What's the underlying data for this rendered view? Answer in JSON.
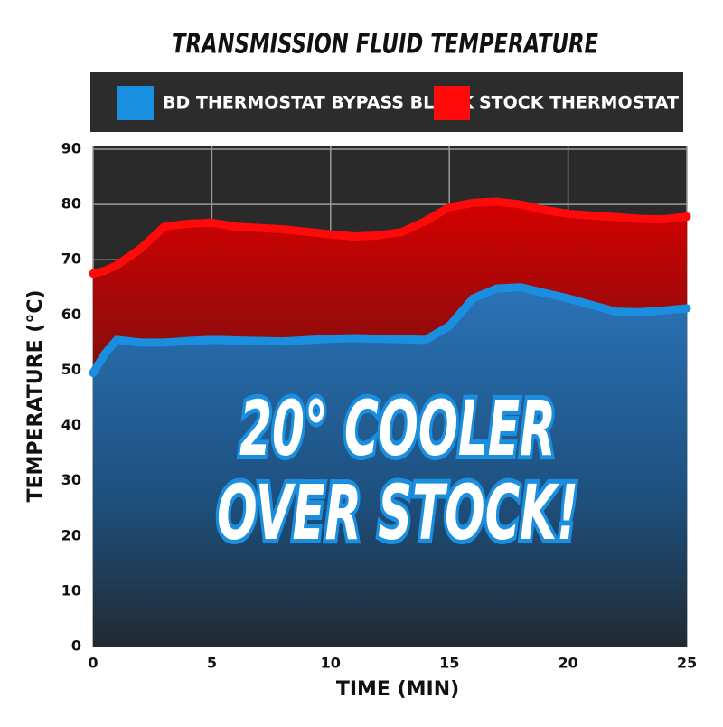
{
  "chart_data": {
    "type": "line",
    "title": "TRANSMISSION FLUID TEMPERATURE",
    "x_label": "TIME (MIN)",
    "y_label": "TEMPERATURE (°C)",
    "annotation": [
      "20° COOLER",
      "OVER STOCK!"
    ],
    "x": [
      0,
      0.5,
      1,
      2,
      3,
      4,
      5,
      6,
      8,
      10,
      11,
      12,
      13,
      14,
      15,
      16,
      17,
      18,
      19,
      20,
      21,
      22,
      23,
      24,
      25
    ],
    "series": [
      {
        "name": "BD THERMOSTAT BYPASS BLOCK",
        "color": "#1a8fe0",
        "values": [
          49.5,
          53,
          55.5,
          55,
          55,
          55.3,
          55.5,
          55.4,
          55.2,
          55.7,
          55.8,
          55.7,
          55.6,
          55.5,
          58,
          63,
          64.8,
          65,
          64,
          63,
          61.8,
          60.6,
          60.5,
          60.8,
          61.2
        ]
      },
      {
        "name": "STOCK THERMOSTAT",
        "color": "#ff0a0a",
        "values": [
          67.5,
          68,
          69,
          72,
          76,
          76.5,
          76.7,
          76,
          75.5,
          74.6,
          74.2,
          74.4,
          75,
          77,
          79.5,
          80.3,
          80.5,
          80,
          79,
          78.3,
          78,
          77.7,
          77.4,
          77.3,
          77.8
        ]
      }
    ],
    "xlim": [
      0,
      25
    ],
    "xticks": [
      0,
      5,
      10,
      15,
      20,
      25
    ],
    "ylim": [
      0,
      90
    ],
    "yticks": [
      0,
      10,
      20,
      30,
      40,
      50,
      60,
      70,
      80,
      90
    ],
    "grid": true
  }
}
